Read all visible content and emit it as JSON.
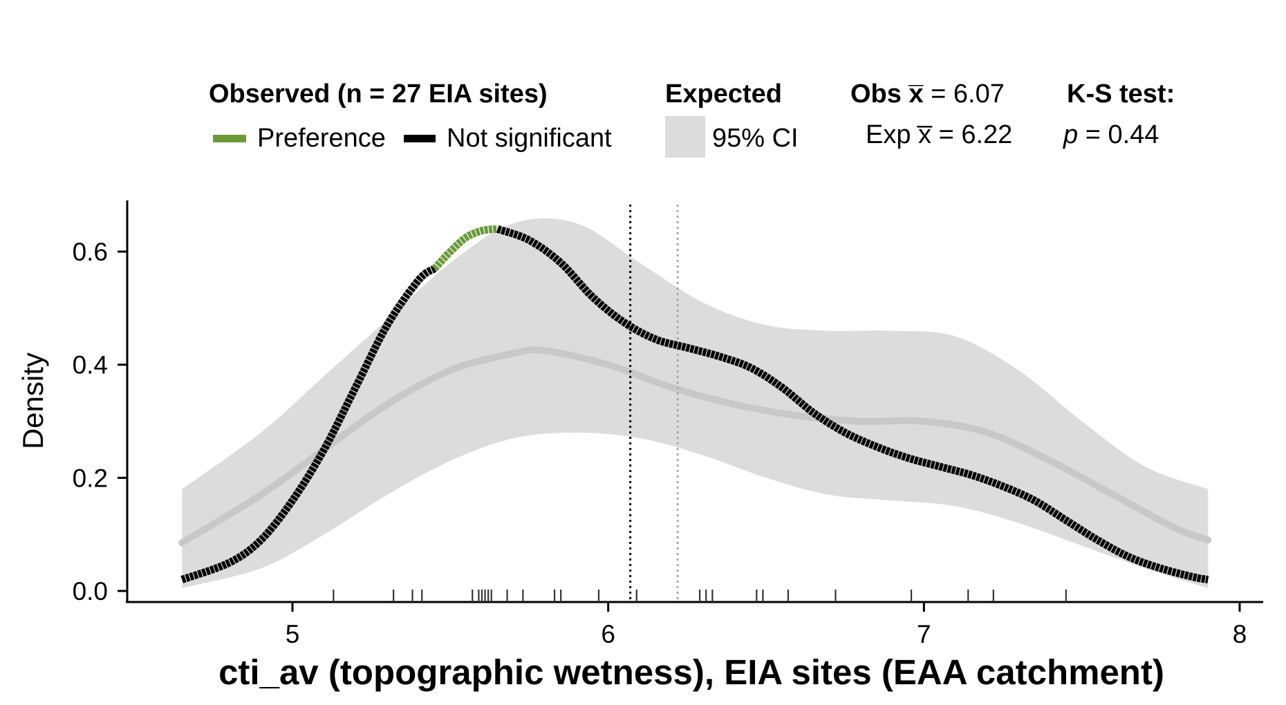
{
  "legend": {
    "observed_title": "Observed (n = 27 EIA sites)",
    "preference_label": "Preference",
    "not_significant_label": "Not significant",
    "expected_title": "Expected",
    "ci_label": "95% CI",
    "obs_mean_label": "Obs x̅ = 6.07",
    "exp_mean_label": "Exp x̅ = 6.22",
    "ks_title": "K-S test:",
    "ks_p_symbol": "p",
    "ks_p_value": " = 0.44"
  },
  "colors": {
    "preference": "#6a9a3a",
    "not_significant": "#000000",
    "ci_band": "#dcdcdc",
    "expected_line": "#c8c8c8",
    "obs_mean_line": "#000000",
    "exp_mean_line": "#a8a8a8"
  },
  "chart_data": {
    "type": "area",
    "xlabel": "cti_av (topographic wetness), EIA sites (EAA catchment)",
    "ylabel": "Density",
    "xlim": [
      4.5,
      8.05
    ],
    "ylim": [
      0.0,
      0.68
    ],
    "x_ticks": [
      5,
      6,
      7,
      8
    ],
    "y_ticks": [
      "0.0",
      "0.2",
      "0.4",
      "0.6"
    ],
    "observed_mean": 6.07,
    "expected_mean": 6.22,
    "ci_upper": {
      "x": [
        4.65,
        4.9,
        5.1,
        5.3,
        5.5,
        5.7,
        5.9,
        6.1,
        6.3,
        6.5,
        6.7,
        6.9,
        7.1,
        7.3,
        7.5,
        7.7,
        7.9
      ],
      "y": [
        0.18,
        0.28,
        0.38,
        0.48,
        0.58,
        0.65,
        0.65,
        0.58,
        0.51,
        0.47,
        0.46,
        0.46,
        0.45,
        0.39,
        0.3,
        0.22,
        0.18
      ]
    },
    "ci_lower": {
      "x": [
        4.65,
        4.9,
        5.1,
        5.3,
        5.5,
        5.7,
        5.9,
        6.1,
        6.3,
        6.5,
        6.7,
        6.9,
        7.1,
        7.3,
        7.5,
        7.7,
        7.9
      ],
      "y": [
        0.005,
        0.04,
        0.1,
        0.17,
        0.23,
        0.27,
        0.28,
        0.27,
        0.24,
        0.2,
        0.17,
        0.16,
        0.15,
        0.12,
        0.08,
        0.04,
        0.005
      ]
    },
    "series": [
      {
        "name": "Expected",
        "x": [
          4.65,
          4.9,
          5.1,
          5.3,
          5.5,
          5.7,
          5.8,
          6.0,
          6.2,
          6.4,
          6.6,
          6.8,
          7.0,
          7.2,
          7.4,
          7.6,
          7.8,
          7.9
        ],
        "y": [
          0.085,
          0.17,
          0.25,
          0.33,
          0.39,
          0.42,
          0.425,
          0.4,
          0.36,
          0.33,
          0.31,
          0.3,
          0.3,
          0.28,
          0.23,
          0.17,
          0.11,
          0.09
        ]
      },
      {
        "name": "Not significant",
        "x": [
          4.65,
          4.8,
          4.9,
          5.0,
          5.1,
          5.2,
          5.3,
          5.4,
          5.45
        ],
        "y": [
          0.02,
          0.05,
          0.09,
          0.16,
          0.25,
          0.36,
          0.47,
          0.55,
          0.57
        ]
      },
      {
        "name": "Preference",
        "x": [
          5.45,
          5.5,
          5.55,
          5.6,
          5.65
        ],
        "y": [
          0.57,
          0.6,
          0.625,
          0.637,
          0.64
        ]
      },
      {
        "name": "Not significant",
        "x": [
          5.65,
          5.75,
          5.85,
          5.95,
          6.05,
          6.15,
          6.25,
          6.35,
          6.45,
          6.55,
          6.65,
          6.75,
          6.85,
          6.95,
          7.05,
          7.15,
          7.25,
          7.35,
          7.45,
          7.55,
          7.65,
          7.75,
          7.85,
          7.9
        ],
        "y": [
          0.64,
          0.62,
          0.58,
          0.52,
          0.475,
          0.445,
          0.43,
          0.415,
          0.395,
          0.36,
          0.315,
          0.28,
          0.255,
          0.235,
          0.22,
          0.205,
          0.185,
          0.16,
          0.125,
          0.09,
          0.06,
          0.04,
          0.025,
          0.02
        ]
      }
    ],
    "rug_x": [
      5.13,
      5.32,
      5.38,
      5.41,
      5.57,
      5.59,
      5.6,
      5.61,
      5.62,
      5.63,
      5.68,
      5.73,
      5.83,
      5.85,
      5.97,
      6.09,
      6.29,
      6.31,
      6.33,
      6.47,
      6.49,
      6.57,
      6.72,
      6.96,
      7.14,
      7.22,
      7.45
    ]
  }
}
